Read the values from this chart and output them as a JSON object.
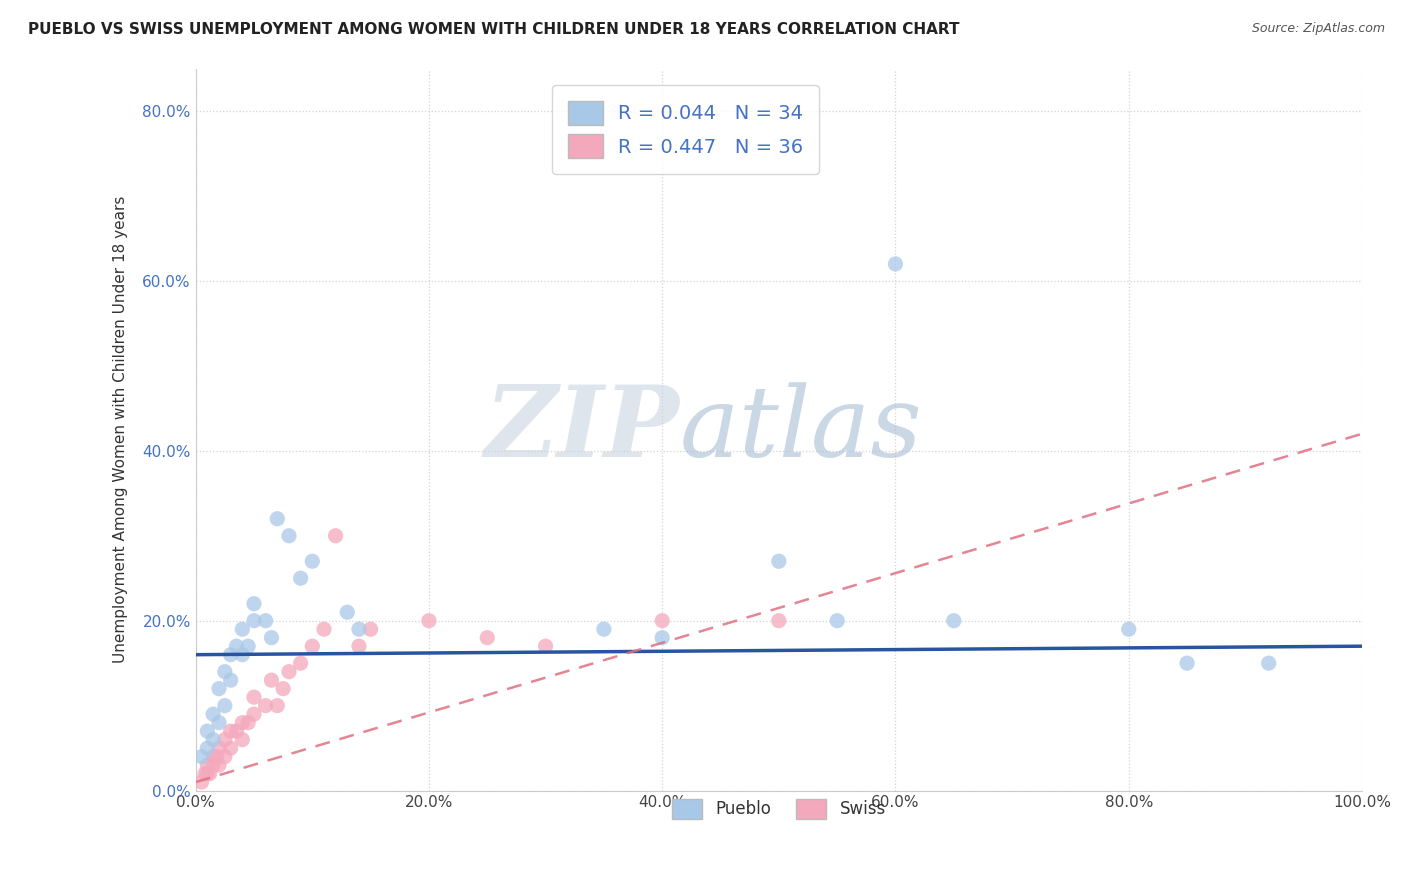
{
  "title": "PUEBLO VS SWISS UNEMPLOYMENT AMONG WOMEN WITH CHILDREN UNDER 18 YEARS CORRELATION CHART",
  "source": "Source: ZipAtlas.com",
  "ylabel": "Unemployment Among Women with Children Under 18 years",
  "xlim": [
    0.0,
    1.0
  ],
  "ylim": [
    0.0,
    0.85
  ],
  "x_ticks": [
    0.0,
    0.2,
    0.4,
    0.6,
    0.8,
    1.0
  ],
  "x_tick_labels": [
    "0.0%",
    "20.0%",
    "40.0%",
    "60.0%",
    "80.0%",
    "100.0%"
  ],
  "y_ticks": [
    0.0,
    0.2,
    0.4,
    0.6,
    0.8
  ],
  "y_tick_labels": [
    "0.0%",
    "20.0%",
    "40.0%",
    "60.0%",
    "80.0%"
  ],
  "pueblo_R": "0.044",
  "pueblo_N": "34",
  "swiss_R": "0.447",
  "swiss_N": "36",
  "pueblo_color": "#a8c8e8",
  "swiss_color": "#f4a8bc",
  "pueblo_line_color": "#2855a0",
  "swiss_line_color": "#e07080",
  "swiss_dash_color": "#e090a0",
  "watermark_zip": "ZIP",
  "watermark_atlas": "atlas",
  "background_color": "#ffffff",
  "grid_color": "#c8c8c8",
  "pueblo_x": [
    0.005,
    0.01,
    0.01,
    0.015,
    0.015,
    0.02,
    0.02,
    0.025,
    0.025,
    0.03,
    0.03,
    0.035,
    0.04,
    0.04,
    0.045,
    0.05,
    0.05,
    0.06,
    0.065,
    0.07,
    0.08,
    0.09,
    0.1,
    0.13,
    0.14,
    0.35,
    0.4,
    0.5,
    0.55,
    0.6,
    0.65,
    0.8,
    0.85,
    0.92
  ],
  "pueblo_y": [
    0.04,
    0.05,
    0.07,
    0.06,
    0.09,
    0.08,
    0.12,
    0.1,
    0.14,
    0.13,
    0.16,
    0.17,
    0.16,
    0.19,
    0.17,
    0.2,
    0.22,
    0.2,
    0.18,
    0.32,
    0.3,
    0.25,
    0.27,
    0.21,
    0.19,
    0.19,
    0.18,
    0.27,
    0.2,
    0.62,
    0.2,
    0.19,
    0.15,
    0.15
  ],
  "swiss_x": [
    0.005,
    0.008,
    0.01,
    0.01,
    0.012,
    0.015,
    0.015,
    0.018,
    0.02,
    0.02,
    0.025,
    0.025,
    0.03,
    0.03,
    0.035,
    0.04,
    0.04,
    0.045,
    0.05,
    0.05,
    0.06,
    0.065,
    0.07,
    0.075,
    0.08,
    0.09,
    0.1,
    0.11,
    0.12,
    0.14,
    0.15,
    0.2,
    0.25,
    0.3,
    0.4,
    0.5
  ],
  "swiss_y": [
    0.01,
    0.02,
    0.02,
    0.03,
    0.02,
    0.03,
    0.04,
    0.04,
    0.03,
    0.05,
    0.04,
    0.06,
    0.05,
    0.07,
    0.07,
    0.06,
    0.08,
    0.08,
    0.09,
    0.11,
    0.1,
    0.13,
    0.1,
    0.12,
    0.14,
    0.15,
    0.17,
    0.19,
    0.3,
    0.17,
    0.19,
    0.2,
    0.18,
    0.17,
    0.2,
    0.2
  ],
  "pueblo_line_x0": 0.0,
  "pueblo_line_x1": 1.0,
  "pueblo_line_y0": 0.16,
  "pueblo_line_y1": 0.17,
  "swiss_line_x0": 0.0,
  "swiss_line_x1": 1.0,
  "swiss_line_y0": 0.01,
  "swiss_line_y1": 0.42
}
